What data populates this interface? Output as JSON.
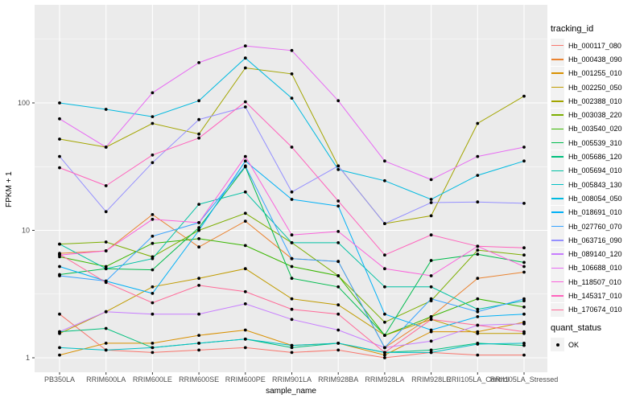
{
  "chart_data": {
    "type": "line",
    "title": "",
    "xlabel": "sample_name",
    "ylabel": "FPKM + 1",
    "y_scale": "log10",
    "y_ticks": [
      1,
      10,
      100
    ],
    "y_minor_ticks": [
      3.162,
      31.62,
      316.2
    ],
    "ylim": [
      0.77,
      590
    ],
    "grid": true,
    "legend_position": "right",
    "legend_title": "tracking_id",
    "point_color": "#000000",
    "panel_bg": "#EBEBEB",
    "grid_color": "#FFFFFF",
    "axis_text_color": "#4D4D4D",
    "tick_color": "#333333",
    "categories": [
      "PB350LA",
      "RRIM600LA",
      "RRIM600LE",
      "RRIM600SE",
      "RRIM600PE",
      "RRIM901LA",
      "RRIM928BA",
      "RRIM928LA",
      "RRIM928LE",
      "RRII105LA_Control",
      "RRII105LA_Stressed"
    ],
    "series": [
      {
        "name": "Hb_000117_080",
        "color": "#F8766D",
        "values": [
          2.2,
          1.15,
          1.1,
          1.15,
          1.2,
          1.1,
          1.15,
          1.0,
          1.1,
          1.05,
          1.05
        ]
      },
      {
        "name": "Hb_000438_090",
        "color": "#EA8331",
        "values": [
          6.6,
          6.9,
          13.3,
          7.4,
          11.8,
          6.0,
          5.7,
          1.2,
          2.1,
          4.2,
          4.7
        ]
      },
      {
        "name": "Hb_001255_010",
        "color": "#D89000",
        "values": [
          1.05,
          1.3,
          1.3,
          1.5,
          1.65,
          1.25,
          1.3,
          1.05,
          1.6,
          1.6,
          1.9
        ]
      },
      {
        "name": "Hb_002250_050",
        "color": "#C09B00",
        "values": [
          1.55,
          2.3,
          3.6,
          4.2,
          5.0,
          2.9,
          2.6,
          1.5,
          2.0,
          1.55,
          1.55
        ]
      },
      {
        "name": "Hb_002388_010",
        "color": "#A3A500",
        "values": [
          52,
          45,
          69,
          57,
          188,
          169,
          32,
          11.3,
          13,
          69,
          113
        ]
      },
      {
        "name": "Hb_003038_220",
        "color": "#7CAE00",
        "values": [
          7.8,
          8.1,
          6.2,
          10,
          13.6,
          8.0,
          4.4,
          1.9,
          2.8,
          7.0,
          6.4
        ]
      },
      {
        "name": "Hb_003540_020",
        "color": "#39B600",
        "values": [
          6.2,
          5.2,
          7.9,
          8.6,
          7.6,
          5.2,
          4.4,
          1.5,
          2.1,
          2.9,
          2.5
        ]
      },
      {
        "name": "Hb_005539_310",
        "color": "#00BB4E",
        "values": [
          4.5,
          5.0,
          4.9,
          10.5,
          31.5,
          4.2,
          3.6,
          1.5,
          5.8,
          6.5,
          5.6
        ]
      },
      {
        "name": "Hb_005686_120",
        "color": "#00BF7D",
        "values": [
          1.6,
          1.7,
          1.2,
          1.3,
          1.4,
          1.2,
          1.3,
          1.1,
          1.15,
          1.3,
          1.25
        ]
      },
      {
        "name": "Hb_005694_010",
        "color": "#00C1A3",
        "values": [
          7.8,
          5.0,
          6.0,
          16,
          20,
          8.0,
          8.0,
          3.6,
          3.6,
          2.4,
          2.8
        ]
      },
      {
        "name": "Hb_005843_130",
        "color": "#00BFC4",
        "values": [
          1.2,
          1.15,
          1.2,
          1.3,
          1.4,
          1.25,
          1.3,
          1.1,
          1.1,
          1.28,
          1.3
        ]
      },
      {
        "name": "Hb_008054_050",
        "color": "#00BAE0",
        "values": [
          100,
          89,
          78,
          104,
          225,
          109,
          30,
          24.5,
          17.5,
          27,
          35
        ]
      },
      {
        "name": "Hb_018691_010",
        "color": "#00B0F6",
        "values": [
          5.2,
          4.0,
          3.2,
          10,
          35,
          17.5,
          15.5,
          2.2,
          1.65,
          2.1,
          2.2
        ]
      },
      {
        "name": "Hb_027760_070",
        "color": "#35A2FF",
        "values": [
          4.4,
          4.0,
          9.0,
          11.5,
          32,
          6.0,
          5.7,
          1.2,
          2.9,
          2.3,
          2.9
        ]
      },
      {
        "name": "Hb_063716_090",
        "color": "#9590FF",
        "values": [
          38,
          14,
          34,
          74,
          93,
          20,
          32,
          11.3,
          16.5,
          16.7,
          16.3
        ]
      },
      {
        "name": "Hb_089140_120",
        "color": "#C77CFF",
        "values": [
          1.6,
          2.3,
          2.2,
          2.2,
          2.65,
          2.0,
          1.65,
          1.2,
          1.35,
          1.8,
          1.85
        ]
      },
      {
        "name": "Hb_106688_010",
        "color": "#E76BF3",
        "values": [
          75,
          45,
          120,
          207,
          280,
          258,
          104,
          35,
          25,
          38,
          45
        ]
      },
      {
        "name": "Hb_118507_010",
        "color": "#FA62DB",
        "values": [
          6.4,
          6.9,
          12.2,
          11.5,
          38,
          9.2,
          9.8,
          5.0,
          4.4,
          7.5,
          5.2
        ]
      },
      {
        "name": "Hb_145317_010",
        "color": "#FF62BC",
        "values": [
          31,
          22.4,
          39,
          53,
          102,
          45,
          17,
          6.4,
          9.2,
          7.5,
          7.3
        ]
      },
      {
        "name": "Hb_170674_010",
        "color": "#FF6A98",
        "values": [
          6.5,
          3.9,
          2.7,
          3.7,
          3.3,
          2.4,
          2.2,
          1.1,
          2.0,
          1.8,
          1.6
        ]
      }
    ],
    "quant_legend": {
      "title": "quant_status",
      "items": [
        {
          "label": "OK",
          "symbol": "point",
          "color": "#000000"
        }
      ]
    }
  }
}
